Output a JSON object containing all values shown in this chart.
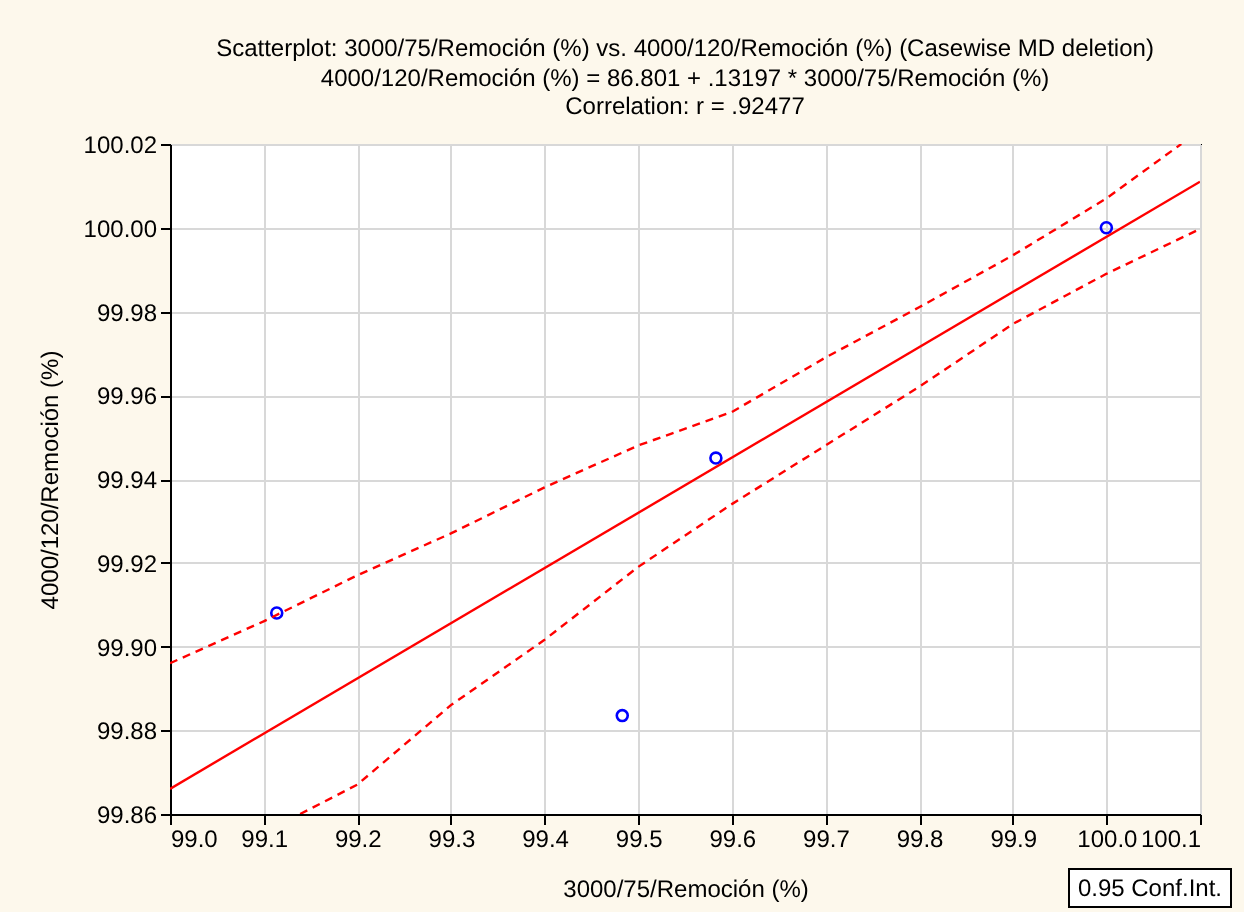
{
  "chart_data": {
    "type": "scatter",
    "title": "Scatterplot: 3000/75/Remoción (%) vs. 4000/120/Remoción (%) (Casewise MD deletion)",
    "subtitle": "4000/120/Remoción (%) = 86.801 + .13197 * 3000/75/Remoción (%)",
    "annotations": [
      "Correlation: r = .92477",
      "0.95 Conf.Int."
    ],
    "xlabel": "3000/75/Remoción (%)",
    "ylabel": "4000/120/Remoción (%)",
    "xlim": [
      99.0,
      100.1
    ],
    "ylim": [
      99.86,
      100.02
    ],
    "xticks": [
      {
        "value": 99.0,
        "label": "99.0"
      },
      99.1,
      99.2,
      99.3,
      99.4,
      99.5,
      99.6,
      99.7,
      99.8,
      99.9,
      {
        "value": 100.0,
        "label": "100.0"
      },
      100.1
    ],
    "yticks": [
      99.86,
      99.88,
      {
        "value": 99.9,
        "label": "99.90"
      },
      99.92,
      99.94,
      99.96,
      99.98,
      {
        "value": 100.0,
        "label": "100.00"
      },
      100.02
    ],
    "grid": true,
    "marker": "circle",
    "series": [
      {
        "color": "#0000ff",
        "x": [
          99.114,
          99.483,
          99.583,
          100.0
        ],
        "values": [
          99.908,
          99.8835,
          99.945,
          100.0
        ]
      },
      {
        "type": "line",
        "color": "#ff0000",
        "line_style": "solid",
        "marker": "none",
        "x": [
          99.0,
          100.1
        ],
        "values": [
          99.866,
          100.011
        ]
      },
      {
        "type": "line",
        "color": "#ff0000",
        "line_style": "dashed",
        "marker": "none",
        "x": [
          99.0,
          99.1,
          99.2,
          99.3,
          99.4,
          99.5,
          99.6,
          99.7,
          99.8,
          99.9,
          100.0,
          100.08
        ],
        "values": [
          99.896,
          99.906,
          99.917,
          99.927,
          99.938,
          99.948,
          99.956,
          99.969,
          99.981,
          99.9934,
          100.007,
          100.02
        ]
      },
      {
        "type": "line",
        "color": "#ff0000",
        "line_style": "dashed",
        "marker": "none",
        "x": [
          99.139,
          99.2,
          99.3,
          99.4,
          99.5,
          99.6,
          99.7,
          99.8,
          99.9,
          100.0,
          100.1
        ],
        "values": [
          99.86,
          99.867,
          99.886,
          99.9016,
          99.919,
          99.934,
          99.948,
          99.962,
          99.977,
          99.989,
          99.9997
        ]
      }
    ]
  }
}
